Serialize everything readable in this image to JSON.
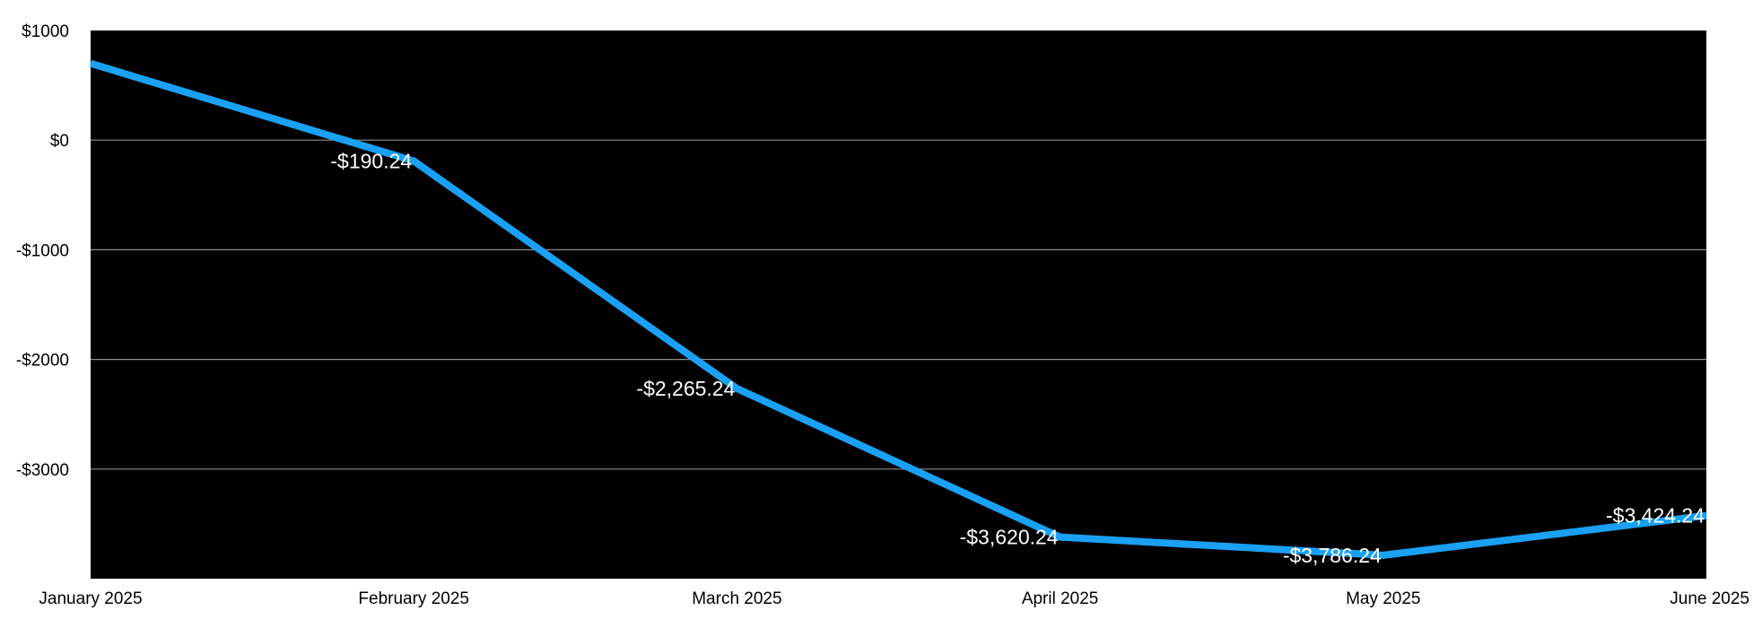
{
  "chart_data": {
    "type": "line",
    "title": "",
    "xlabel": "",
    "ylabel": "",
    "categories": [
      "January 2025",
      "February 2025",
      "March 2025",
      "April 2025",
      "May 2025",
      "June 2025"
    ],
    "series": [
      {
        "values": [
          700,
          -190.24,
          -2265.24,
          -3620.24,
          -3786.24,
          -3424.24
        ],
        "data_labels": [
          "",
          "-$190.24",
          "-$2,265.24",
          "-$3,620.24",
          "-$3,786.24",
          "-$3,424.24"
        ]
      }
    ],
    "ylim": [
      -4000,
      1000
    ],
    "y_ticks": [
      {
        "value": 1000,
        "label": "$1000"
      },
      {
        "value": 0,
        "label": "$0"
      },
      {
        "value": -1000,
        "label": "-$1000"
      },
      {
        "value": -2000,
        "label": "-$2000"
      },
      {
        "value": -3000,
        "label": "-$3000"
      }
    ],
    "grid": true,
    "legend": "none",
    "colors": {
      "plot_background": "#000000",
      "page_background": "#ffffff",
      "line": "#1aa1f5",
      "gridline": "#8c8c8c",
      "tick_text": "#000000",
      "data_label_text": "#ffffff"
    }
  }
}
